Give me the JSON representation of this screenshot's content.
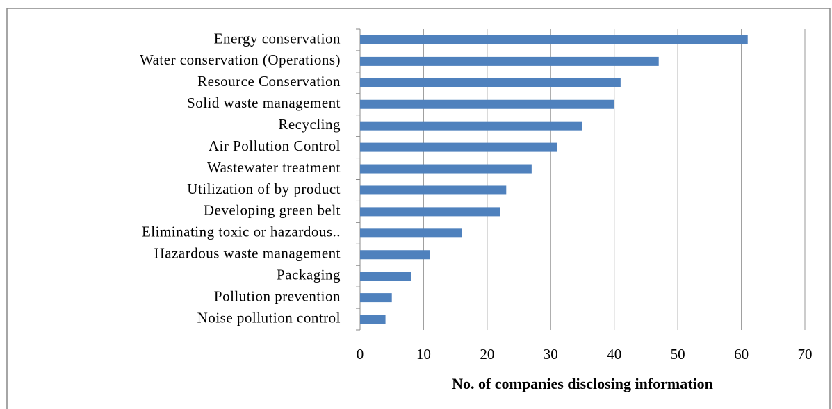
{
  "chart_data": {
    "type": "bar",
    "orientation": "horizontal",
    "x_label": "No. of companies disclosing information",
    "categories": [
      "Energy conservation",
      "Water conservation (Operations)",
      "Resource Conservation",
      "Solid waste management",
      "Recycling",
      "Air Pollution Control",
      "Wastewater treatment",
      "Utilization of by product",
      "Developing green belt",
      "Eliminating toxic or hazardous..",
      "Hazardous waste management",
      "Packaging",
      "Pollution prevention",
      "Noise pollution control"
    ],
    "values": [
      61,
      47,
      41,
      40,
      35,
      31,
      27,
      23,
      22,
      16,
      11,
      8,
      5,
      4
    ],
    "color": "#4f81bd",
    "xlim": [
      0,
      70
    ],
    "xticks": [
      0,
      10,
      20,
      30,
      40,
      50,
      60,
      70
    ],
    "grid": true
  }
}
